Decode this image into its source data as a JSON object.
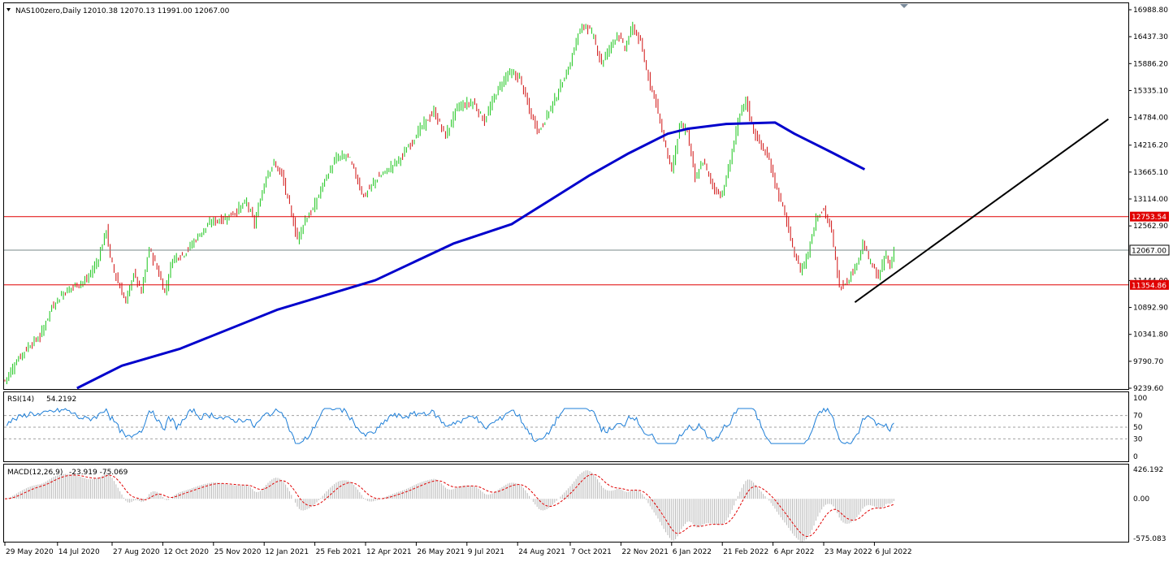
{
  "header": {
    "symbol": "NAS100zero,Daily",
    "ohlc": "12010.38 12070.13 11991.00 12067.00"
  },
  "chart_data": {
    "type": "candlestick",
    "x_labels": [
      "29 May 2020",
      "14 Jul 2020",
      "27 Aug 2020",
      "12 Oct 2020",
      "25 Nov 2020",
      "12 Jan 2021",
      "25 Feb 2021",
      "12 Apr 2021",
      "26 May 2021",
      "9 Jul 2021",
      "24 Aug 2021",
      "7 Oct 2021",
      "22 Nov 2021",
      "6 Jan 2022",
      "21 Feb 2022",
      "6 Apr 2022",
      "23 May 2022",
      "6 Jul 2022"
    ],
    "y_ticks": [
      "16988.80",
      "16437.30",
      "15886.20",
      "15335.10",
      "14784.00",
      "14216.20",
      "13665.10",
      "13114.00",
      "12562.90",
      "11444.00",
      "10892.90",
      "10341.80",
      "9790.70",
      "9239.60"
    ],
    "ylim": [
      9239.6,
      16988.8
    ],
    "price_path": [
      [
        0,
        9400
      ],
      [
        6,
        9800
      ],
      [
        12,
        10100
      ],
      [
        18,
        10300
      ],
      [
        24,
        10900
      ],
      [
        30,
        11200
      ],
      [
        36,
        11350
      ],
      [
        42,
        11450
      ],
      [
        48,
        11900
      ],
      [
        52,
        12500
      ],
      [
        54,
        11900
      ],
      [
        58,
        11400
      ],
      [
        62,
        11000
      ],
      [
        66,
        11600
      ],
      [
        70,
        11200
      ],
      [
        74,
        12100
      ],
      [
        78,
        11700
      ],
      [
        82,
        11200
      ],
      [
        86,
        11900
      ],
      [
        92,
        12000
      ],
      [
        100,
        12400
      ],
      [
        106,
        12650
      ],
      [
        112,
        12700
      ],
      [
        118,
        12850
      ],
      [
        124,
        13050
      ],
      [
        128,
        12600
      ],
      [
        134,
        13600
      ],
      [
        138,
        13850
      ],
      [
        142,
        13600
      ],
      [
        146,
        12950
      ],
      [
        150,
        12300
      ],
      [
        154,
        12700
      ],
      [
        158,
        12900
      ],
      [
        164,
        13500
      ],
      [
        170,
        13950
      ],
      [
        176,
        14000
      ],
      [
        180,
        13600
      ],
      [
        184,
        13150
      ],
      [
        190,
        13500
      ],
      [
        196,
        13700
      ],
      [
        204,
        14000
      ],
      [
        212,
        14500
      ],
      [
        220,
        14900
      ],
      [
        226,
        14400
      ],
      [
        232,
        15000
      ],
      [
        240,
        15100
      ],
      [
        246,
        14700
      ],
      [
        252,
        15300
      ],
      [
        258,
        15700
      ],
      [
        264,
        15600
      ],
      [
        270,
        14800
      ],
      [
        274,
        14500
      ],
      [
        280,
        15000
      ],
      [
        286,
        15500
      ],
      [
        290,
        15900
      ],
      [
        294,
        16500
      ],
      [
        298,
        16700
      ],
      [
        302,
        16400
      ],
      [
        306,
        15900
      ],
      [
        310,
        16200
      ],
      [
        314,
        16500
      ],
      [
        318,
        16200
      ],
      [
        322,
        16650
      ],
      [
        326,
        16300
      ],
      [
        330,
        15600
      ],
      [
        334,
        15100
      ],
      [
        338,
        14300
      ],
      [
        342,
        13700
      ],
      [
        346,
        14600
      ],
      [
        350,
        14500
      ],
      [
        354,
        13500
      ],
      [
        358,
        13900
      ],
      [
        364,
        13300
      ],
      [
        368,
        13200
      ],
      [
        372,
        13900
      ],
      [
        376,
        14700
      ],
      [
        380,
        15150
      ],
      [
        384,
        14500
      ],
      [
        388,
        14200
      ],
      [
        392,
        13900
      ],
      [
        396,
        13300
      ],
      [
        400,
        12800
      ],
      [
        404,
        12100
      ],
      [
        408,
        11650
      ],
      [
        412,
        12000
      ],
      [
        416,
        12750
      ],
      [
        420,
        12900
      ],
      [
        424,
        12450
      ],
      [
        428,
        11300
      ],
      [
        432,
        11450
      ],
      [
        436,
        11700
      ],
      [
        440,
        12200
      ],
      [
        444,
        11800
      ],
      [
        448,
        11500
      ],
      [
        452,
        12000
      ],
      [
        454,
        11700
      ],
      [
        456,
        12067
      ]
    ],
    "series": [
      {
        "name": "",
        "color": "#0000cc",
        "values": [
          [
            37,
            9239.6
          ],
          [
            60,
            9700
          ],
          [
            90,
            10050
          ],
          [
            140,
            10850
          ],
          [
            190,
            11450
          ],
          [
            230,
            12200
          ],
          [
            260,
            12600
          ],
          [
            280,
            13100
          ],
          [
            300,
            13600
          ],
          [
            320,
            14050
          ],
          [
            340,
            14450
          ],
          [
            350,
            14550
          ],
          [
            370,
            14650
          ],
          [
            395,
            14680
          ],
          [
            405,
            14450
          ],
          [
            425,
            14050
          ],
          [
            441,
            13720
          ]
        ]
      },
      {
        "name": "RSI(14)",
        "value_label": "54.2192",
        "ylim": [
          0,
          100
        ],
        "ticks": [
          "100",
          "70",
          "50",
          "30",
          "0"
        ],
        "levels": [
          70,
          30
        ]
      },
      {
        "name": "MACD(12,26,9)",
        "value_label": "-23.919 -75.069",
        "ticks": [
          "426.192",
          "0.00",
          "-575.083"
        ],
        "ylim": [
          -575.083,
          426.192
        ]
      }
    ],
    "horizontal_lines": [
      {
        "value": 12753.54,
        "label": "12753.54",
        "color": "#e00000"
      },
      {
        "value": 12067.0,
        "label": "12067.00",
        "color": "#000000"
      },
      {
        "value": 11354.86,
        "label": "11354.86",
        "color": "#e00000"
      }
    ],
    "trendline": {
      "points": [
        [
          436,
          11000
        ],
        [
          566,
          14750
        ]
      ],
      "color": "#000000"
    }
  }
}
